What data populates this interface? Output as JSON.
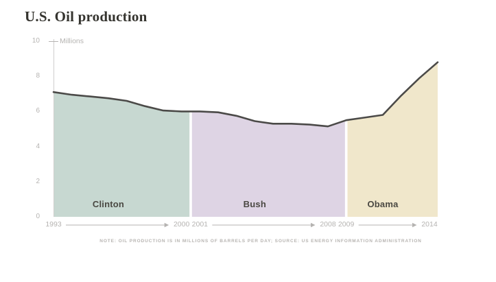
{
  "chart_data": {
    "type": "area",
    "title": "U.S. Oil production",
    "unit_label": "Millions",
    "x": [
      1993,
      1994,
      1995,
      1996,
      1997,
      1998,
      1999,
      2000,
      2001,
      2002,
      2003,
      2004,
      2005,
      2006,
      2007,
      2008,
      2009,
      2010,
      2011,
      2012,
      2013,
      2014
    ],
    "values": [
      7.1,
      6.95,
      6.85,
      6.75,
      6.6,
      6.3,
      6.05,
      6.0,
      6.0,
      5.95,
      5.75,
      5.45,
      5.3,
      5.3,
      5.25,
      5.15,
      5.5,
      5.65,
      5.8,
      6.9,
      7.9,
      8.8
    ],
    "ylim": [
      0,
      10
    ],
    "yticks": [
      0,
      2,
      4,
      6,
      8,
      10
    ],
    "xticks": [
      1993,
      2000,
      2001,
      2008,
      2009,
      2014
    ],
    "grid": false,
    "legend": "none",
    "line_color": "#4b4a48",
    "axis_color": "#cfcecd",
    "tick_text_color": "#b5b3b1",
    "regions": [
      {
        "label": "Clinton",
        "start": 1993,
        "end": 2000,
        "color": "#c7d8d1"
      },
      {
        "label": "Bush",
        "start": 2001,
        "end": 2008,
        "color": "#ded4e4"
      },
      {
        "label": "Obama",
        "start": 2009,
        "end": 2014,
        "color": "#f0e7cb"
      }
    ],
    "note": "NOTE: OIL PRODUCTION IS IN MILLIONS OF BARRELS PER DAY; SOURCE: US ENERGY INFORMATION ADMINISTRATION"
  }
}
